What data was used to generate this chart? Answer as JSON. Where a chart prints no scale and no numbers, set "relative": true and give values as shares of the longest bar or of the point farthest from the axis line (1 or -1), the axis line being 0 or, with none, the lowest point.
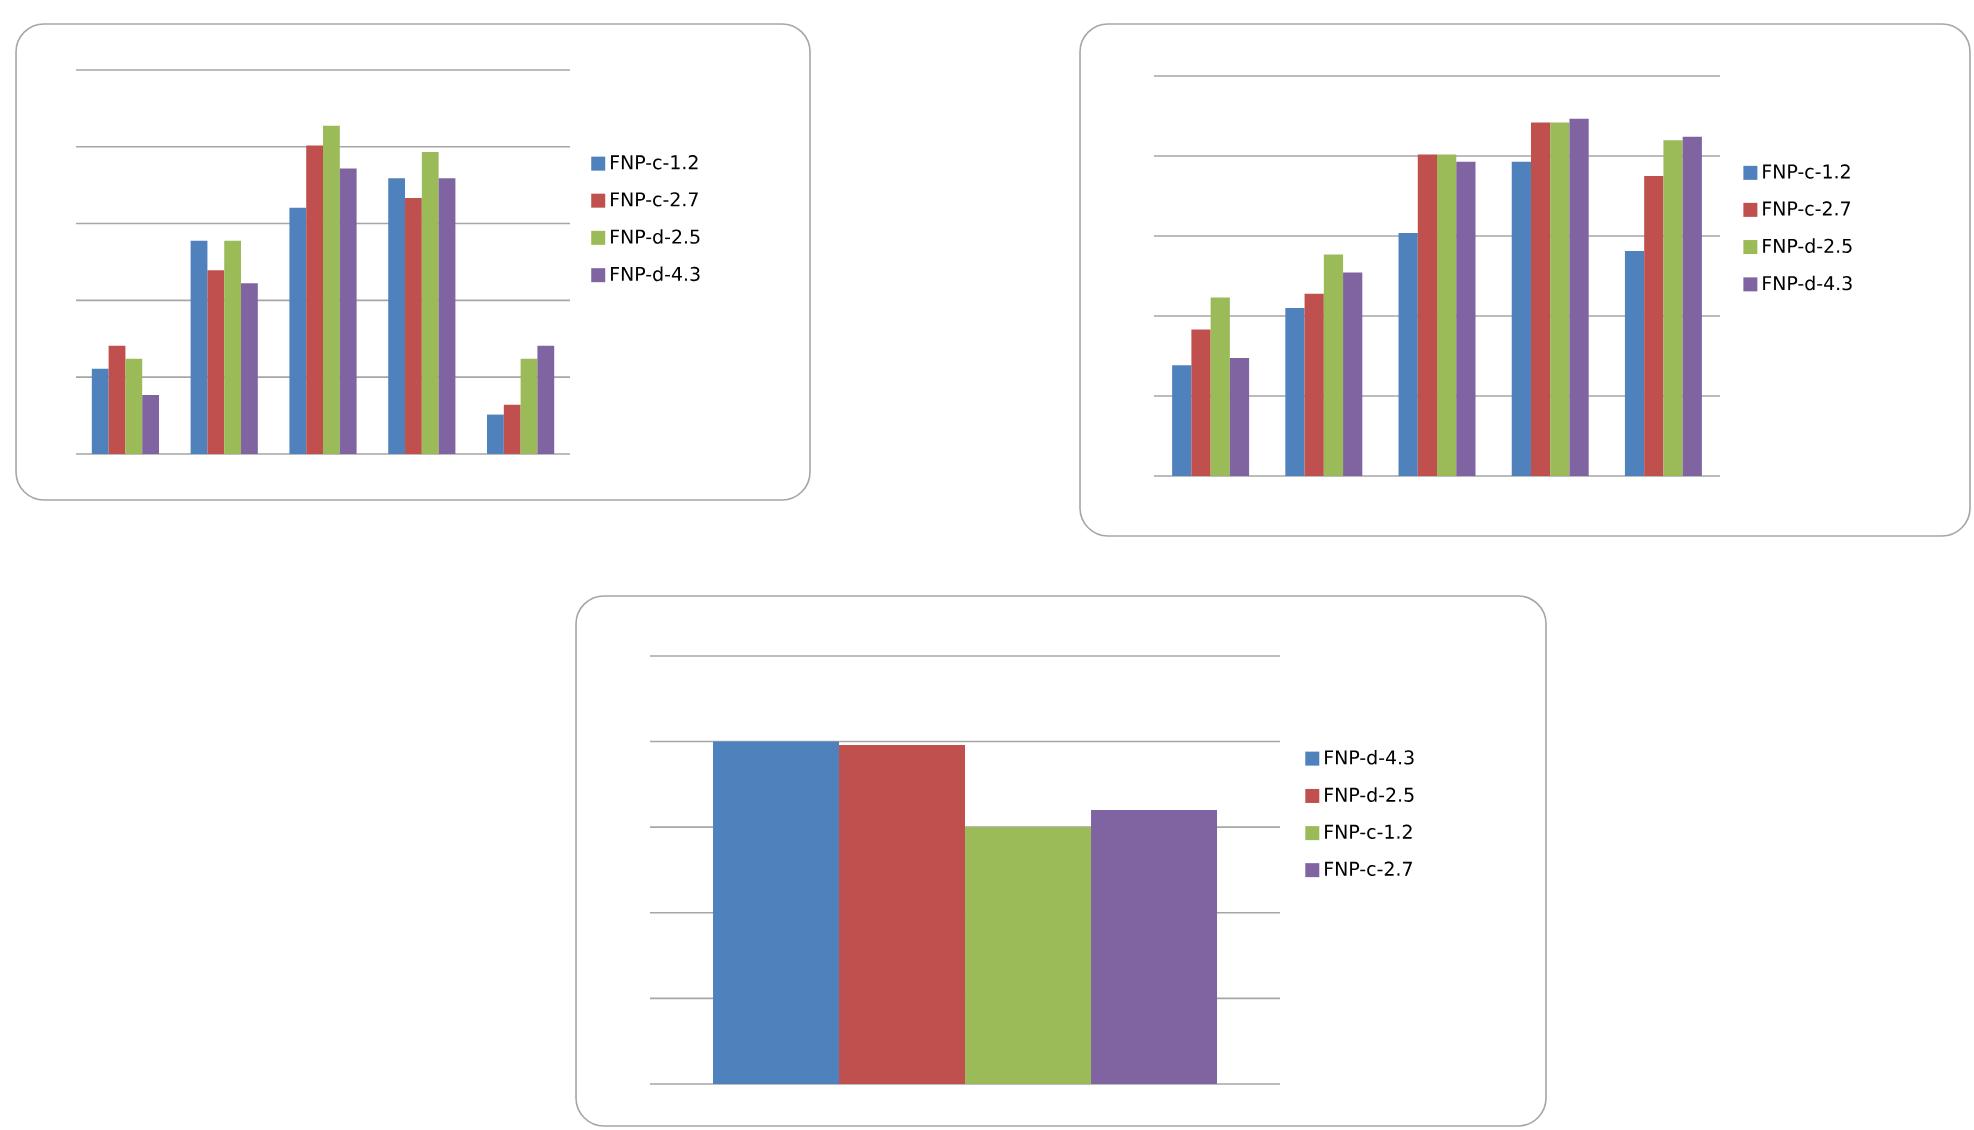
{
  "chart_data": [
    {
      "type": "bar",
      "relative": true,
      "grid": "y",
      "legend": "right",
      "categories": [
        null,
        null,
        null,
        null,
        null
      ],
      "series": [
        {
          "name": "FNP-c-1.2",
          "color": "#4f81bd",
          "values": [
            0.26,
            0.65,
            0.75,
            0.84,
            0.12
          ]
        },
        {
          "name": "FNP-c-2.7",
          "color": "#c0504d",
          "values": [
            0.33,
            0.56,
            0.94,
            0.78,
            0.15
          ]
        },
        {
          "name": "FNP-d-2.5",
          "color": "#9bbb59",
          "values": [
            0.29,
            0.65,
            1.0,
            0.92,
            0.29
          ]
        },
        {
          "name": "FNP-d-4.3",
          "color": "#8064a2",
          "values": [
            0.18,
            0.52,
            0.87,
            0.84,
            0.33
          ]
        }
      ]
    },
    {
      "type": "bar",
      "relative": true,
      "grid": "y",
      "legend": "right",
      "categories": [
        null,
        null,
        null,
        null,
        null
      ],
      "series": [
        {
          "name": "FNP-c-1.2",
          "color": "#4f81bd",
          "values": [
            0.31,
            0.47,
            0.68,
            0.88,
            0.63
          ]
        },
        {
          "name": "FNP-c-2.7",
          "color": "#c0504d",
          "values": [
            0.41,
            0.51,
            0.9,
            0.99,
            0.84
          ]
        },
        {
          "name": "FNP-d-2.5",
          "color": "#9bbb59",
          "values": [
            0.5,
            0.62,
            0.9,
            0.99,
            0.94
          ]
        },
        {
          "name": "FNP-d-4.3",
          "color": "#8064a2",
          "values": [
            0.33,
            0.57,
            0.88,
            1.0,
            0.95
          ]
        }
      ]
    },
    {
      "type": "bar",
      "relative": true,
      "grid": "y",
      "legend": "right",
      "categories": [
        null
      ],
      "series": [
        {
          "name": "FNP-d-4.3",
          "color": "#4f81bd",
          "values": [
            1.0
          ]
        },
        {
          "name": "FNP-d-2.5",
          "color": "#c0504d",
          "values": [
            0.99
          ]
        },
        {
          "name": "FNP-c-1.2",
          "color": "#9bbb59",
          "values": [
            0.75
          ]
        },
        {
          "name": "FNP-c-2.7",
          "color": "#8064a2",
          "values": [
            0.8
          ]
        }
      ]
    }
  ]
}
